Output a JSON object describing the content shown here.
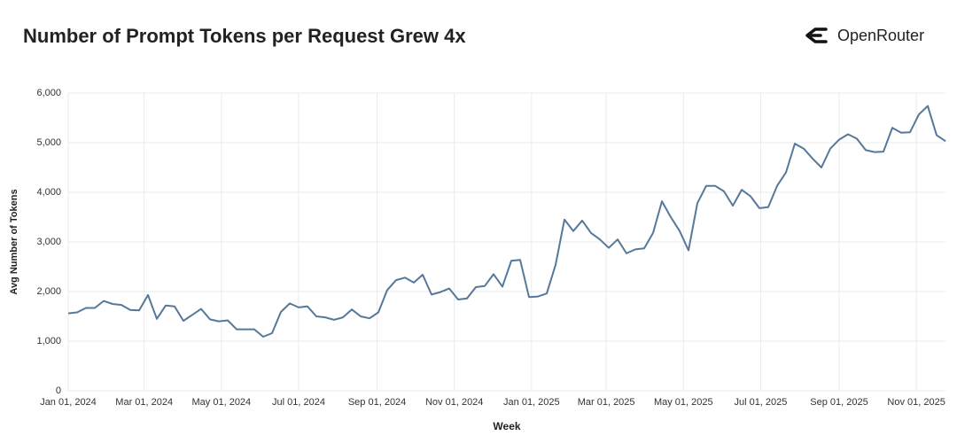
{
  "brand": "OpenRouter",
  "chart_data": {
    "type": "line",
    "title": "Number of Prompt Tokens per Request Grew 4x",
    "x_label": "Week",
    "y_label": "Avg Number of Tokens",
    "grid": true,
    "xlim": [
      "2024-01-01",
      "2025-11-24"
    ],
    "xticks": [
      {
        "value": "2024-01-01",
        "label": "Jan 01, 2024"
      },
      {
        "value": "2024-03-01",
        "label": "Mar 01, 2024"
      },
      {
        "value": "2024-05-01",
        "label": "May 01, 2024"
      },
      {
        "value": "2024-07-01",
        "label": "Jul 01, 2024"
      },
      {
        "value": "2024-09-01",
        "label": "Sep 01, 2024"
      },
      {
        "value": "2024-11-01",
        "label": "Nov 01, 2024"
      },
      {
        "value": "2025-01-01",
        "label": "Jan 01, 2025"
      },
      {
        "value": "2025-03-01",
        "label": "Mar 01, 2025"
      },
      {
        "value": "2025-05-01",
        "label": "May 01, 2025"
      },
      {
        "value": "2025-07-01",
        "label": "Jul 01, 2025"
      },
      {
        "value": "2025-09-01",
        "label": "Sep 01, 2025"
      },
      {
        "value": "2025-11-01",
        "label": "Nov 01, 2025"
      }
    ],
    "ylim": [
      0,
      6000
    ],
    "yticks": [
      0,
      {
        "value": 1000,
        "label": "1,000"
      },
      {
        "value": 2000,
        "label": "2,000"
      },
      {
        "value": 3000,
        "label": "3,000"
      },
      {
        "value": 4000,
        "label": "4,000"
      },
      {
        "value": 5000,
        "label": "5,000"
      },
      {
        "value": 6000,
        "label": "6,000"
      }
    ],
    "x": [
      "2024-01-01",
      "2024-01-08",
      "2024-01-15",
      "2024-01-22",
      "2024-01-29",
      "2024-02-05",
      "2024-02-12",
      "2024-02-19",
      "2024-02-26",
      "2024-03-04",
      "2024-03-11",
      "2024-03-18",
      "2024-03-25",
      "2024-04-01",
      "2024-04-08",
      "2024-04-15",
      "2024-04-22",
      "2024-04-29",
      "2024-05-06",
      "2024-05-13",
      "2024-05-20",
      "2024-05-27",
      "2024-06-03",
      "2024-06-10",
      "2024-06-17",
      "2024-06-24",
      "2024-07-01",
      "2024-07-08",
      "2024-07-15",
      "2024-07-22",
      "2024-07-29",
      "2024-08-05",
      "2024-08-12",
      "2024-08-19",
      "2024-08-26",
      "2024-09-02",
      "2024-09-09",
      "2024-09-16",
      "2024-09-23",
      "2024-09-30",
      "2024-10-07",
      "2024-10-14",
      "2024-10-21",
      "2024-10-28",
      "2024-11-04",
      "2024-11-11",
      "2024-11-18",
      "2024-11-25",
      "2024-12-02",
      "2024-12-09",
      "2024-12-16",
      "2024-12-23",
      "2024-12-30",
      "2025-01-06",
      "2025-01-13",
      "2025-01-20",
      "2025-01-27",
      "2025-02-03",
      "2025-02-10",
      "2025-02-17",
      "2025-02-24",
      "2025-03-03",
      "2025-03-10",
      "2025-03-17",
      "2025-03-24",
      "2025-03-31",
      "2025-04-07",
      "2025-04-14",
      "2025-04-21",
      "2025-04-28",
      "2025-05-05",
      "2025-05-12",
      "2025-05-19",
      "2025-05-26",
      "2025-06-02",
      "2025-06-09",
      "2025-06-16",
      "2025-06-23",
      "2025-06-30",
      "2025-07-07",
      "2025-07-14",
      "2025-07-21",
      "2025-07-28",
      "2025-08-04",
      "2025-08-11",
      "2025-08-18",
      "2025-08-25",
      "2025-09-01",
      "2025-09-08",
      "2025-09-15",
      "2025-09-22",
      "2025-09-29",
      "2025-10-06",
      "2025-10-13",
      "2025-10-20",
      "2025-10-27",
      "2025-11-03",
      "2025-11-10",
      "2025-11-17",
      "2025-11-24"
    ],
    "series": [
      {
        "color": "#56789a",
        "values": [
          1560,
          1580,
          1670,
          1670,
          1810,
          1750,
          1730,
          1630,
          1620,
          1930,
          1450,
          1720,
          1700,
          1410,
          1530,
          1650,
          1440,
          1400,
          1420,
          1240,
          1240,
          1240,
          1090,
          1160,
          1590,
          1760,
          1680,
          1700,
          1500,
          1480,
          1430,
          1480,
          1640,
          1500,
          1460,
          1580,
          2030,
          2230,
          2280,
          2180,
          2340,
          1940,
          1990,
          2060,
          1840,
          1860,
          2090,
          2110,
          2350,
          2100,
          2620,
          2640,
          1890,
          1900,
          1960,
          2540,
          3450,
          3220,
          3430,
          3180,
          3050,
          2880,
          3050,
          2770,
          2850,
          2870,
          3180,
          3820,
          3500,
          3220,
          2830,
          3780,
          4130,
          4130,
          4020,
          3730,
          4050,
          3920,
          3680,
          3700,
          4130,
          4400,
          4980,
          4880,
          4680,
          4500,
          4880,
          5060,
          5170,
          5080,
          4850,
          4810,
          4820,
          5300,
          5200,
          5210,
          5570,
          5740,
          5150,
          5030
        ]
      }
    ]
  }
}
